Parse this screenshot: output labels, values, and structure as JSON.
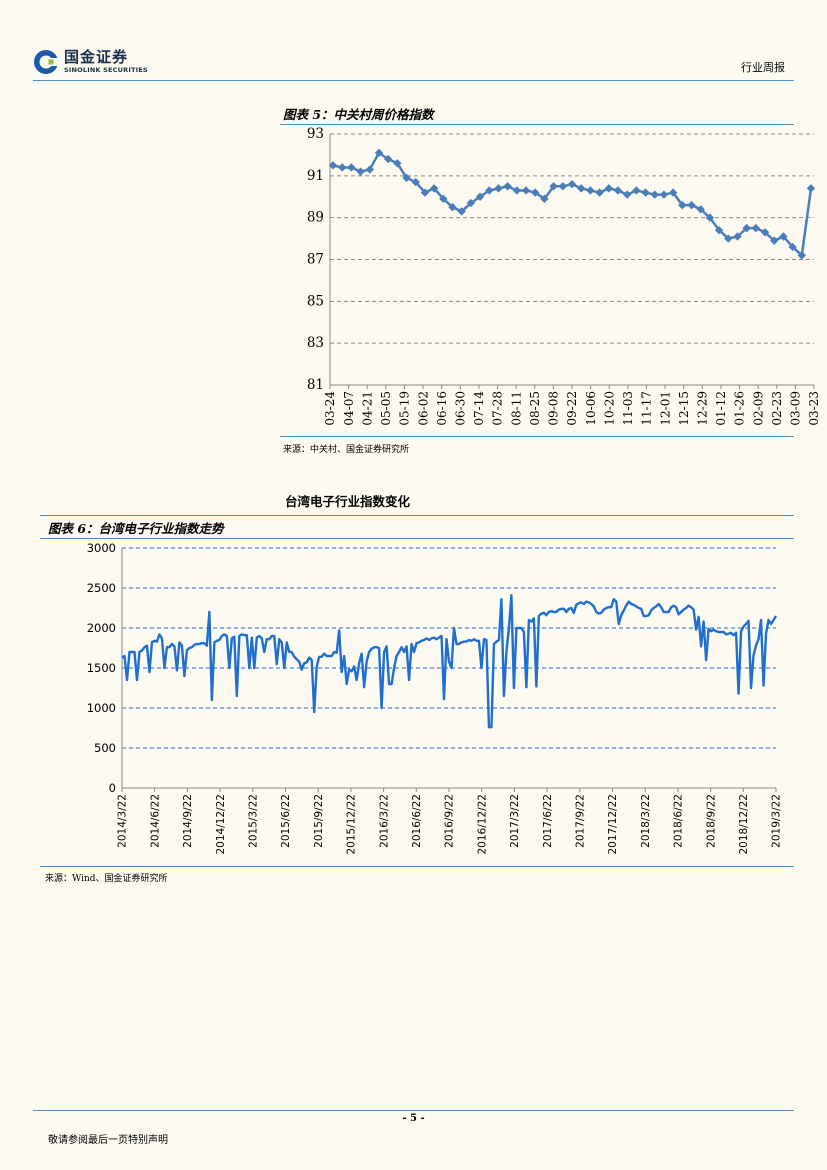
{
  "header": {
    "logo_cn": "国金证券",
    "logo_en": "SINOLINK SECURITIES",
    "report_type": "行业周报"
  },
  "colors": {
    "accent": "#4a90c8",
    "series1": "#4a7ebb",
    "series2": "#1f6fd0",
    "logo_blue": "#1c5aa8",
    "logo_green": "#8fbf3f"
  },
  "figure5": {
    "title": "图表 5：中关村周价格指数",
    "source": "来源：中关村、国金证券研究所"
  },
  "section_title": "台湾电子行业指数变化",
  "figure6": {
    "title": "图表 6：台湾电子行业指数走势",
    "source": "来源：Wind、国金证券研究所"
  },
  "footer": {
    "page": "- 5 -",
    "disclaimer": "敬请参阅最后一页特别声明"
  },
  "chart_data": [
    {
      "type": "line",
      "title": "",
      "ylim": [
        81,
        93
      ],
      "yticks": [
        81,
        83,
        85,
        87,
        89,
        91,
        93
      ],
      "grid": true,
      "marker": "diamond",
      "xtick_labels": [
        "03-24",
        "04-07",
        "04-21",
        "05-05",
        "05-19",
        "06-02",
        "06-16",
        "06-30",
        "07-14",
        "07-28",
        "08-11",
        "08-25",
        "09-08",
        "09-22",
        "10-06",
        "10-20",
        "11-03",
        "11-17",
        "12-01",
        "12-15",
        "12-29",
        "01-12",
        "01-26",
        "02-09",
        "02-23",
        "03-09",
        "03-23"
      ],
      "values": [
        91.5,
        91.4,
        91.4,
        91.2,
        91.3,
        92.1,
        91.8,
        91.6,
        90.9,
        90.7,
        90.2,
        90.4,
        89.9,
        89.5,
        89.3,
        89.7,
        90.0,
        90.3,
        90.4,
        90.5,
        90.3,
        90.3,
        90.2,
        89.9,
        90.5,
        90.5,
        90.6,
        90.4,
        90.3,
        90.2,
        90.4,
        90.3,
        90.1,
        90.3,
        90.2,
        90.1,
        90.1,
        90.2,
        89.6,
        89.6,
        89.4,
        89.0,
        88.4,
        88.0,
        88.1,
        88.5,
        88.5,
        88.3,
        87.9,
        88.1,
        87.6,
        87.2,
        90.4
      ]
    },
    {
      "type": "line",
      "title": "",
      "ylim": [
        0,
        3000
      ],
      "yticks": [
        0,
        500,
        1000,
        1500,
        2000,
        2500,
        3000
      ],
      "grid": true,
      "xtick_labels": [
        "2014/3/22",
        "2014/6/22",
        "2014/9/22",
        "2014/12/22",
        "2015/3/22",
        "2015/6/22",
        "2015/9/22",
        "2015/12/22",
        "2016/3/22",
        "2016/6/22",
        "2016/9/22",
        "2016/12/22",
        "2017/3/22",
        "2017/6/22",
        "2017/9/22",
        "2017/12/22",
        "2018/3/22",
        "2018/6/22",
        "2018/9/22",
        "2018/12/22",
        "2019/3/22"
      ],
      "values": [
        1630,
        1650,
        1350,
        1700,
        1700,
        1700,
        1350,
        1700,
        1720,
        1760,
        1780,
        1450,
        1820,
        1840,
        1830,
        1920,
        1870,
        1500,
        1760,
        1760,
        1800,
        1770,
        1470,
        1820,
        1780,
        1400,
        1720,
        1750,
        1760,
        1790,
        1800,
        1800,
        1810,
        1810,
        1780,
        2200,
        1100,
        1820,
        1840,
        1850,
        1900,
        1920,
        1900,
        1500,
        1870,
        1890,
        1150,
        1900,
        1920,
        1910,
        1910,
        1500,
        1880,
        1500,
        1880,
        1900,
        1870,
        1700,
        1860,
        1860,
        1900,
        1900,
        1550,
        1860,
        1820,
        1500,
        1820,
        1700,
        1700,
        1640,
        1610,
        1580,
        1480,
        1560,
        1570,
        1630,
        1600,
        950,
        1520,
        1640,
        1640,
        1680,
        1650,
        1650,
        1650,
        1700,
        1690,
        1970,
        1450,
        1650,
        1300,
        1480,
        1460,
        1520,
        1350,
        1560,
        1680,
        1260,
        1580,
        1700,
        1740,
        1760,
        1760,
        1750,
        1000,
        1700,
        1770,
        1300,
        1300,
        1500,
        1650,
        1700,
        1760,
        1700,
        1770,
        1350,
        1800,
        1700,
        1810,
        1820,
        1840,
        1850,
        1870,
        1850,
        1870,
        1880,
        1860,
        1880,
        1900,
        1110,
        1860,
        1580,
        1500,
        2000,
        1800,
        1800,
        1820,
        1830,
        1830,
        1850,
        1840,
        1860,
        1840,
        1840,
        1500,
        1860,
        1850,
        760,
        760,
        1800,
        1830,
        1850,
        2360,
        1150,
        1700,
        2000,
        2410,
        1250,
        2000,
        2000,
        2000,
        1950,
        1260,
        2100,
        2080,
        2120,
        1270,
        2150,
        2180,
        2190,
        2160,
        2200,
        2210,
        2200,
        2200,
        2230,
        2240,
        2240,
        2200,
        2240,
        2250,
        2190,
        2290,
        2310,
        2320,
        2300,
        2330,
        2320,
        2300,
        2270,
        2200,
        2180,
        2190,
        2230,
        2250,
        2260,
        2260,
        2360,
        2330,
        2050,
        2160,
        2220,
        2280,
        2330,
        2300,
        2290,
        2270,
        2250,
        2240,
        2150,
        2150,
        2160,
        2220,
        2250,
        2270,
        2300,
        2260,
        2200,
        2200,
        2200,
        2260,
        2280,
        2260,
        2170,
        2200,
        2230,
        2250,
        2280,
        2260,
        2230,
        1980,
        2140,
        1770,
        2080,
        1600,
        1990,
        1960,
        1980,
        1960,
        1950,
        1950,
        1950,
        1920,
        1930,
        1940,
        1910,
        1940,
        1180,
        1960,
        2020,
        2050,
        2090,
        1250,
        1660,
        1780,
        1860,
        2100,
        1280,
        1930,
        2100,
        2050,
        2100,
        2150
      ]
    }
  ]
}
